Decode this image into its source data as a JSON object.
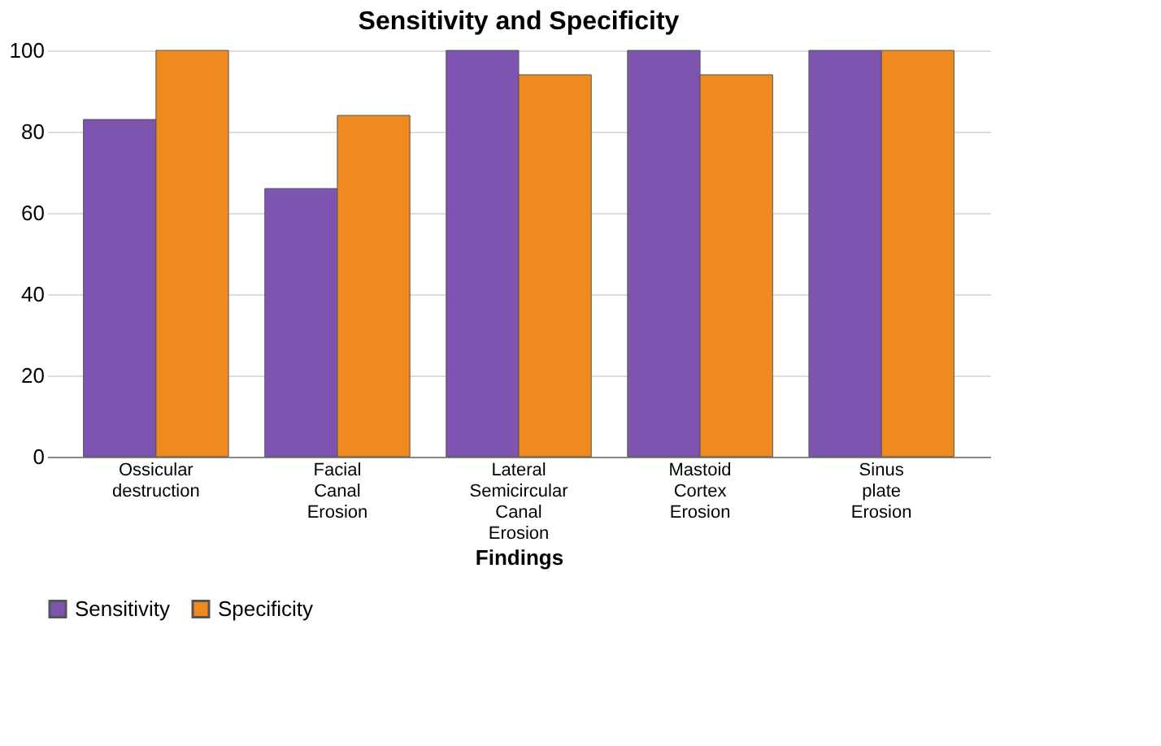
{
  "chart_data": {
    "type": "bar",
    "title": "Sensitivity and Specificity",
    "xlabel": "Findings",
    "categories": [
      "Ossicular destruction",
      "Facial Canal Erosion",
      "Lateral Semicircular Canal Erosion",
      "Mastoid Cortex Erosion",
      "Sinus plate Erosion"
    ],
    "series": [
      {
        "name": "Sensitivity",
        "color": "#7d55b0",
        "values": [
          83,
          66,
          100,
          100,
          100
        ]
      },
      {
        "name": "Specificity",
        "color": "#f08a1e",
        "values": [
          100,
          84,
          94,
          94,
          100
        ]
      }
    ],
    "ylim": [
      0,
      100
    ],
    "yticks": [
      0,
      20,
      40,
      60,
      80,
      100
    ],
    "grid": "y",
    "legend": "bottom"
  }
}
